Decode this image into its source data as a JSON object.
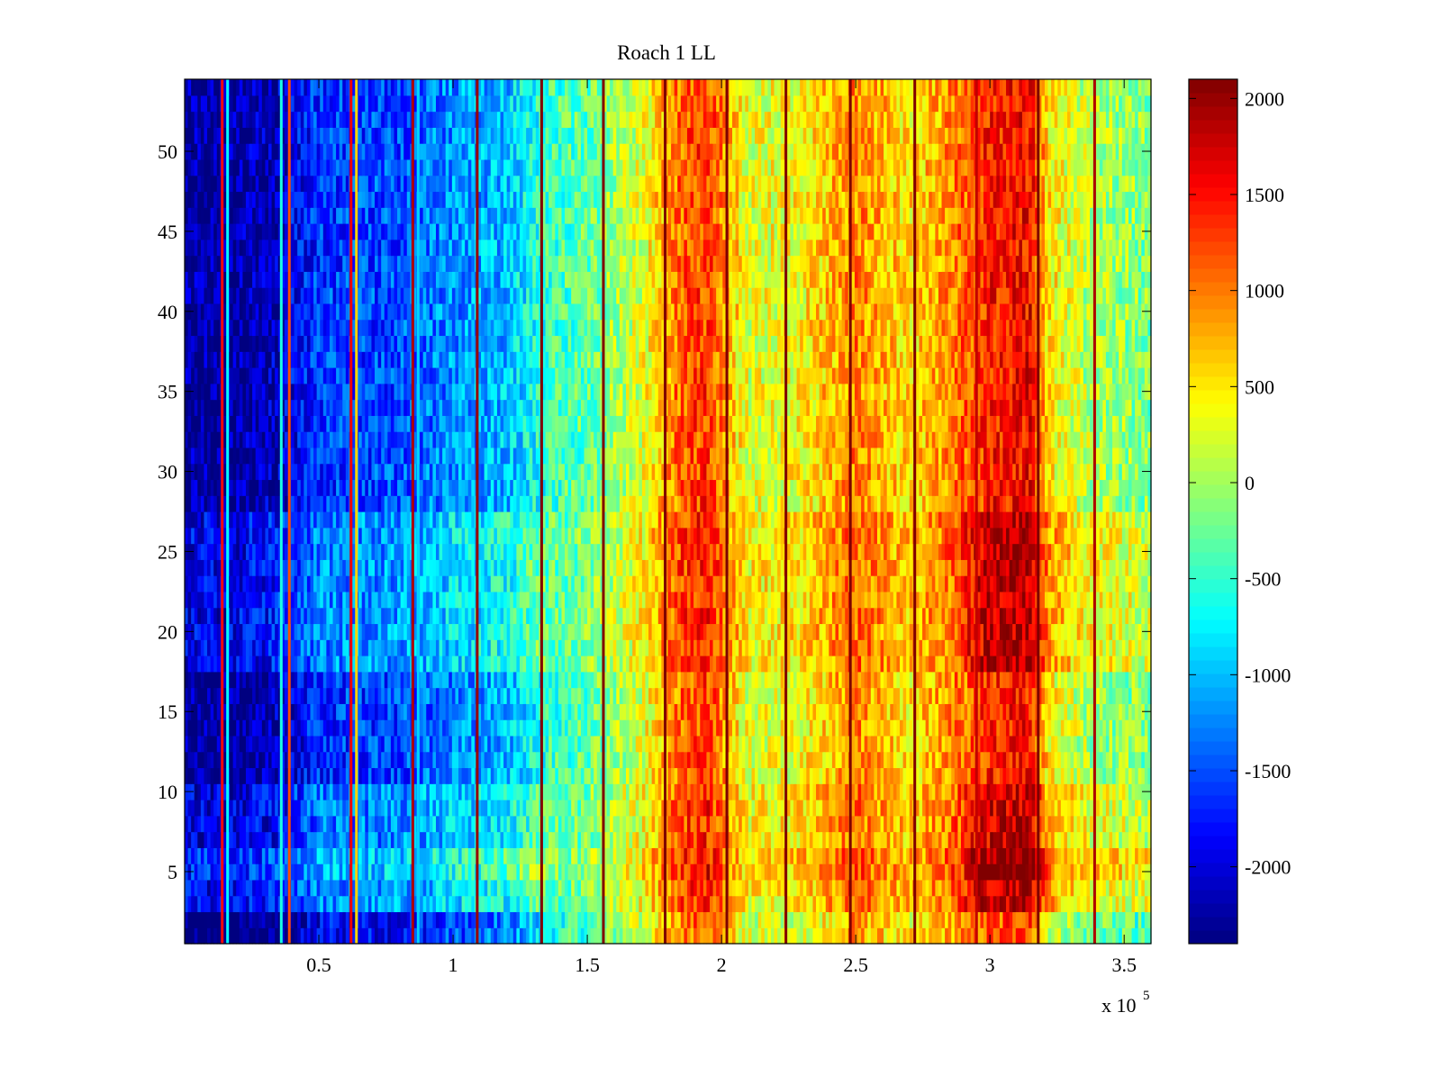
{
  "chart_data": {
    "type": "heatmap",
    "title": "Roach 1 LL",
    "xlabel": "",
    "ylabel": "",
    "x_multiplier_label": "x 10",
    "x_multiplier_exponent": "5",
    "xlim": [
      0.0,
      3.6
    ],
    "ylim": [
      0.5,
      54.5
    ],
    "x_ticks": [
      0.5,
      1,
      1.5,
      2,
      2.5,
      3,
      3.5
    ],
    "x_tick_labels": [
      "0.5",
      "1",
      "1.5",
      "2",
      "2.5",
      "3",
      "3.5"
    ],
    "y_ticks": [
      5,
      10,
      15,
      20,
      25,
      30,
      35,
      40,
      45,
      50
    ],
    "y_tick_labels": [
      "5",
      "10",
      "15",
      "20",
      "25",
      "30",
      "35",
      "40",
      "45",
      "50"
    ],
    "rows": 54,
    "colormap": "jet",
    "clim": [
      -2400,
      2100
    ],
    "colorbar_ticks": [
      2000,
      1500,
      1000,
      500,
      0,
      -500,
      -1000,
      -1500,
      -2000
    ],
    "colorbar_tick_labels": [
      "2000",
      "1500",
      "1000",
      "500",
      "0",
      "-500",
      "-1000",
      "-1500",
      "-2000"
    ],
    "column_profile": {
      "x": [
        0.0,
        0.15,
        0.35,
        0.5,
        0.8,
        1.0,
        1.2,
        1.33,
        1.5,
        1.7,
        1.85,
        1.95,
        2.1,
        2.3,
        2.5,
        2.7,
        2.85,
        3.0,
        3.15,
        3.22,
        3.35,
        3.45,
        3.6
      ],
      "value": [
        -2150,
        -2200,
        -2000,
        -1500,
        -1400,
        -1100,
        -900,
        -450,
        -250,
        300,
        1150,
        1350,
        300,
        450,
        1000,
        550,
        950,
        1550,
        1650,
        600,
        200,
        100,
        -50
      ]
    },
    "row_groups": [
      {
        "rows": [
          1,
          2
        ],
        "offset": -400
      },
      {
        "rows": [
          3,
          4
        ],
        "offset": 250
      },
      {
        "rows": [
          5,
          6
        ],
        "offset": 500
      },
      {
        "rows": [
          7,
          10
        ],
        "offset": 150
      },
      {
        "rows": [
          11,
          17
        ],
        "offset": -150
      },
      {
        "rows": [
          18,
          27
        ],
        "offset": 250
      },
      {
        "rows": [
          28,
          54
        ],
        "offset": -100
      }
    ],
    "anomaly_columns": [
      {
        "x": 0.14,
        "value": 1500
      },
      {
        "x": 0.16,
        "value": -700
      },
      {
        "x": 0.36,
        "value": -600
      },
      {
        "x": 0.39,
        "value": 1200
      },
      {
        "x": 0.62,
        "value": 1600
      },
      {
        "x": 0.64,
        "value": 600
      },
      {
        "x": 0.85,
        "value": 1900
      },
      {
        "x": 0.87,
        "value": -900
      },
      {
        "x": 1.09,
        "value": 2000
      },
      {
        "x": 1.33,
        "value": 2100
      },
      {
        "x": 1.56,
        "value": 2100
      },
      {
        "x": 1.79,
        "value": 2100
      },
      {
        "x": 2.02,
        "value": 2100
      },
      {
        "x": 2.24,
        "value": 2100
      },
      {
        "x": 2.48,
        "value": 2100
      },
      {
        "x": 2.72,
        "value": 2100
      },
      {
        "x": 2.95,
        "value": 1800
      },
      {
        "x": 3.18,
        "value": 2100
      },
      {
        "x": 3.39,
        "value": 1900
      }
    ]
  }
}
